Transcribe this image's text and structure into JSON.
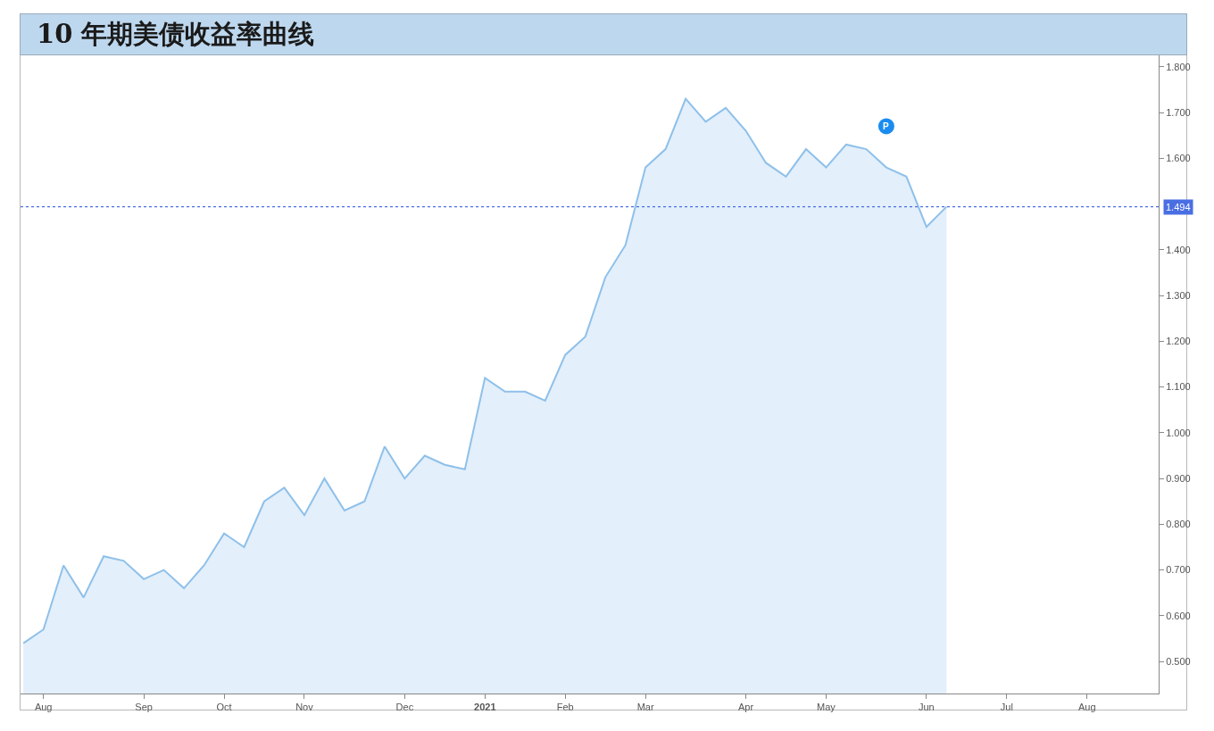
{
  "chart_data": {
    "type": "area",
    "title": "10 年期美债收益率曲线",
    "x": [
      "2020-07-27",
      "2020-08-03",
      "2020-08-10",
      "2020-08-17",
      "2020-08-24",
      "2020-08-31",
      "2020-09-07",
      "2020-09-14",
      "2020-09-21",
      "2020-09-28",
      "2020-10-05",
      "2020-10-12",
      "2020-10-19",
      "2020-10-26",
      "2020-11-02",
      "2020-11-09",
      "2020-11-16",
      "2020-11-23",
      "2020-11-30",
      "2020-12-07",
      "2020-12-14",
      "2020-12-21",
      "2020-12-28",
      "2021-01-04",
      "2021-01-11",
      "2021-01-18",
      "2021-01-25",
      "2021-02-01",
      "2021-02-08",
      "2021-02-15",
      "2021-02-22",
      "2021-03-01",
      "2021-03-08",
      "2021-03-15",
      "2021-03-22",
      "2021-03-29",
      "2021-04-05",
      "2021-04-12",
      "2021-04-19",
      "2021-04-26",
      "2021-05-03",
      "2021-05-10",
      "2021-05-17",
      "2021-05-24",
      "2021-05-31",
      "2021-06-07",
      "2021-06-14"
    ],
    "series": [
      {
        "color": "#8ec0ea",
        "values": [
          0.54,
          0.57,
          0.71,
          0.64,
          0.73,
          0.72,
          0.68,
          0.7,
          0.66,
          0.71,
          0.78,
          0.75,
          0.85,
          0.88,
          0.82,
          0.9,
          0.83,
          0.85,
          0.97,
          0.9,
          0.95,
          0.93,
          0.92,
          1.12,
          1.09,
          1.09,
          1.07,
          1.17,
          1.21,
          1.34,
          1.41,
          1.58,
          1.62,
          1.73,
          1.68,
          1.71,
          1.66,
          1.59,
          1.56,
          1.62,
          1.58,
          1.63,
          1.62,
          1.58,
          1.56,
          1.45,
          1.494
        ]
      }
    ],
    "xlim": [
      "2020-07-26",
      "2021-08-27"
    ],
    "xticks": [
      {
        "value": "2020-08-03",
        "label": "Aug"
      },
      {
        "value": "2020-09-07",
        "label": "Sep"
      },
      {
        "value": "2020-10-05",
        "label": "Oct"
      },
      {
        "value": "2020-11-02",
        "label": "Nov"
      },
      {
        "value": "2020-12-07",
        "label": "Dec"
      },
      {
        "value": "2021-01-04",
        "label": "2021"
      },
      {
        "value": "2021-02-01",
        "label": "Feb"
      },
      {
        "value": "2021-03-01",
        "label": "Mar"
      },
      {
        "value": "2021-04-05",
        "label": "Apr"
      },
      {
        "value": "2021-05-03",
        "label": "May"
      },
      {
        "value": "2021-06-07",
        "label": "Jun"
      },
      {
        "value": "2021-07-05",
        "label": "Jul"
      },
      {
        "value": "2021-08-02",
        "label": "Aug"
      }
    ],
    "ylim": [
      0.43,
      1.825
    ],
    "yticks": [
      {
        "value": 0.5,
        "label": "0.500"
      },
      {
        "value": 0.6,
        "label": "0.600"
      },
      {
        "value": 0.7,
        "label": "0.700"
      },
      {
        "value": 0.8,
        "label": "0.800"
      },
      {
        "value": 0.9,
        "label": "0.900"
      },
      {
        "value": 1.0,
        "label": "1.000"
      },
      {
        "value": 1.1,
        "label": "1.100"
      },
      {
        "value": 1.2,
        "label": "1.200"
      },
      {
        "value": 1.3,
        "label": "1.300"
      },
      {
        "value": 1.4,
        "label": "1.400"
      },
      {
        "value": 1.6,
        "label": "1.600"
      },
      {
        "value": 1.7,
        "label": "1.700"
      },
      {
        "value": 1.8,
        "label": "1.800"
      }
    ],
    "ref_lines": [
      {
        "axis": "y",
        "value": 1.494,
        "label": "1.494",
        "color": "#4a6fe3",
        "line_style": "dotted"
      }
    ],
    "annotations": [
      {
        "text": "P",
        "x": "2021-05-24",
        "y": 1.67
      }
    ],
    "grid": false,
    "marker": "none"
  }
}
